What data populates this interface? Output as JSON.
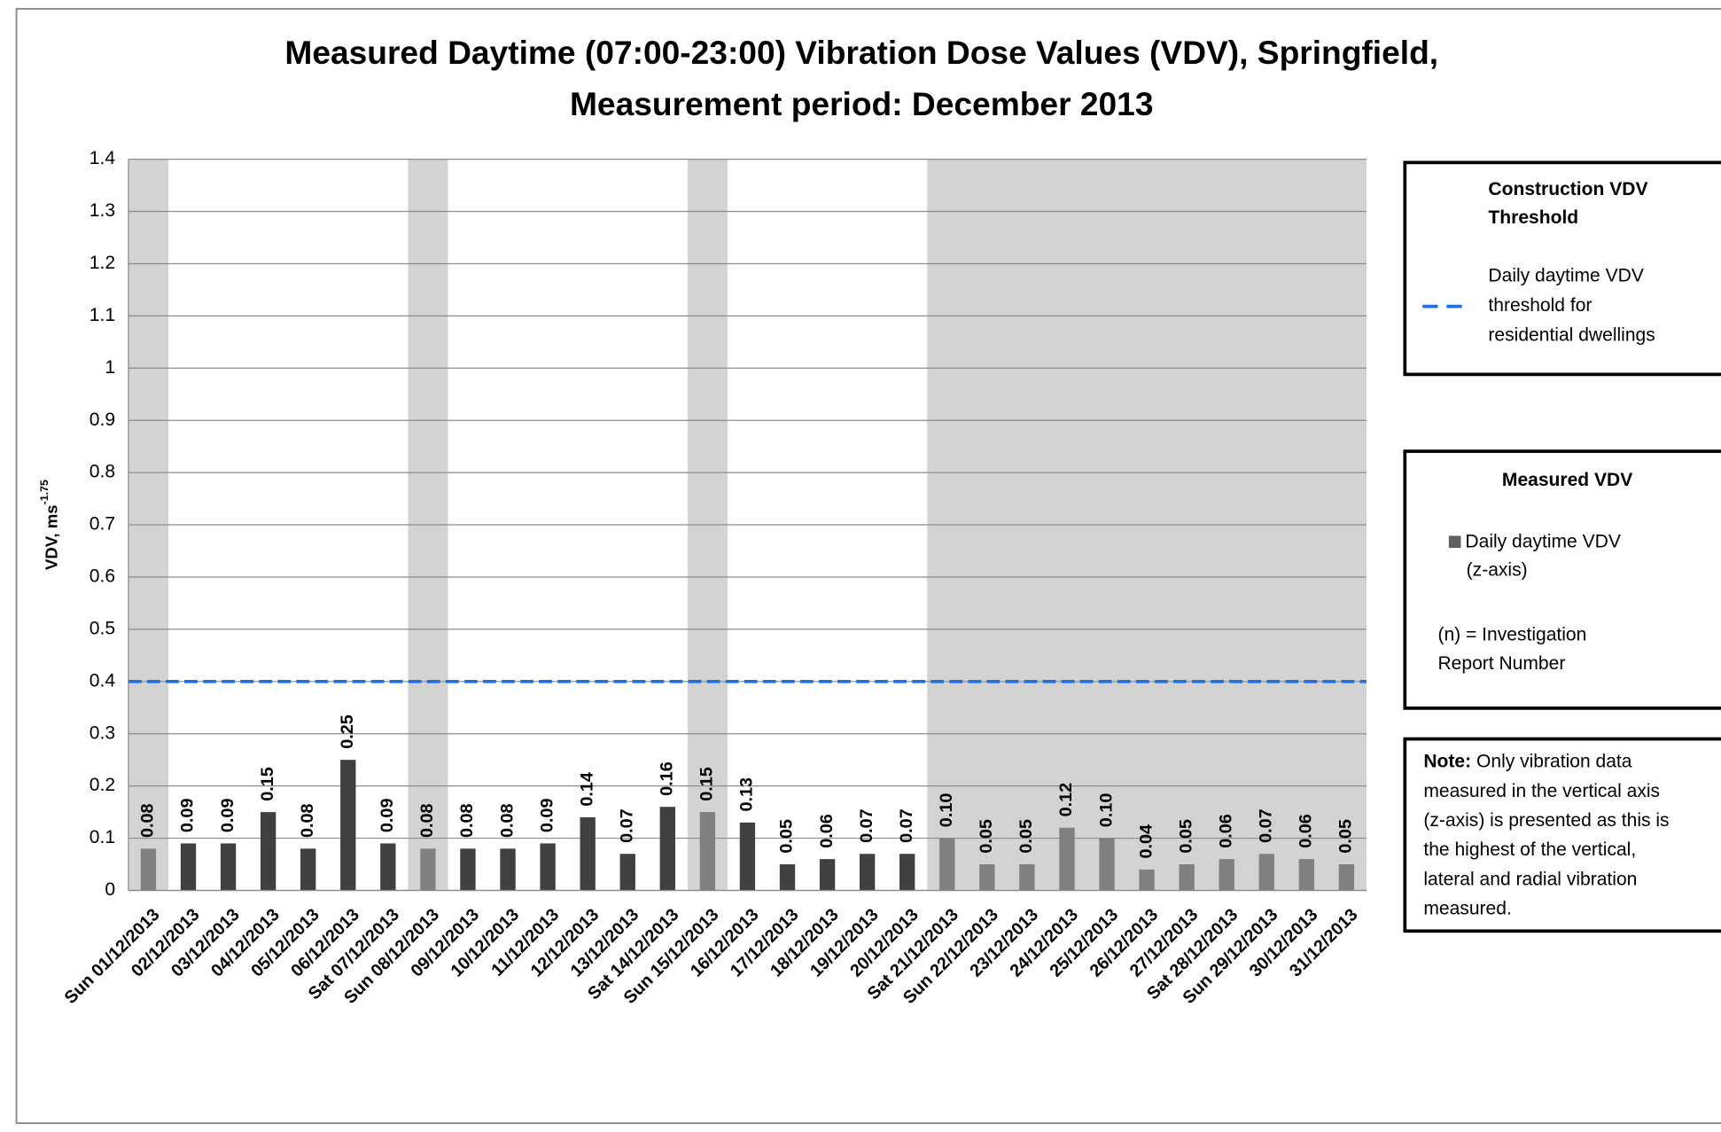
{
  "chart_data": {
    "type": "bar",
    "title": [
      "Measured Daytime (07:00-23:00) Vibration Dose Values (VDV), Springfield,",
      "Measurement period: December 2013"
    ],
    "ylabel": "VDV, ms",
    "ylabel_sup": "-1.75",
    "categories": [
      "Sun 01/12/2013",
      "02/12/2013",
      "03/12/2013",
      "04/12/2013",
      "05/12/2013",
      "06/12/2013",
      "Sat 07/12/2013",
      "Sun 08/12/2013",
      "09/12/2013",
      "10/12/2013",
      "11/12/2013",
      "12/12/2013",
      "13/12/2013",
      "Sat 14/12/2013",
      "Sun 15/12/2013",
      "16/12/2013",
      "17/12/2013",
      "18/12/2013",
      "19/12/2013",
      "20/12/2013",
      "Sat 21/12/2013",
      "Sun 22/12/2013",
      "23/12/2013",
      "24/12/2013",
      "25/12/2013",
      "26/12/2013",
      "27/12/2013",
      "Sat 28/12/2013",
      "Sun 29/12/2013",
      "30/12/2013",
      "31/12/2013"
    ],
    "values": [
      0.08,
      0.09,
      0.09,
      0.15,
      0.08,
      0.25,
      0.09,
      0.08,
      0.08,
      0.08,
      0.09,
      0.14,
      0.07,
      0.16,
      0.15,
      0.13,
      0.05,
      0.06,
      0.07,
      0.07,
      0.1,
      0.05,
      0.05,
      0.12,
      0.1,
      0.04,
      0.05,
      0.06,
      0.07,
      0.06,
      0.05
    ],
    "value_labels": [
      "0.08",
      "0.09",
      "0.09",
      "0.15",
      "0.08",
      "0.25",
      "0.09",
      "0.08",
      "0.08",
      "0.08",
      "0.09",
      "0.14",
      "0.07",
      "0.16",
      "0.15",
      "0.13",
      "0.05",
      "0.06",
      "0.07",
      "0.07",
      "0.10",
      "0.05",
      "0.05",
      "0.12",
      "0.10",
      "0.04",
      "0.05",
      "0.06",
      "0.07",
      "0.06",
      "0.05"
    ],
    "colors": [
      "#808080",
      "#404040",
      "#404040",
      "#404040",
      "#404040",
      "#404040",
      "#404040",
      "#808080",
      "#404040",
      "#404040",
      "#404040",
      "#404040",
      "#404040",
      "#404040",
      "#808080",
      "#404040",
      "#404040",
      "#404040",
      "#404040",
      "#404040",
      "#808080",
      "#808080",
      "#808080",
      "#808080",
      "#808080",
      "#808080",
      "#808080",
      "#808080",
      "#808080",
      "#808080",
      "#808080"
    ],
    "label_colors": [
      "#7575c8",
      "#1a1ab0",
      "#1a1ab0",
      "#1a1ab0",
      "#1a1ab0",
      "#1a1ab0",
      "#1a1ab0",
      "#7575c8",
      "#1a1ab0",
      "#1a1ab0",
      "#1a1ab0",
      "#1a1ab0",
      "#1a1ab0",
      "#1a1ab0",
      "#7575c8",
      "#1a1ab0",
      "#1a1ab0",
      "#1a1ab0",
      "#1a1ab0",
      "#1a1ab0",
      "#7575c8",
      "#7575c8",
      "#7575c8",
      "#7575c8",
      "#7575c8",
      "#7575c8",
      "#7575c8",
      "#7575c8",
      "#7575c8",
      "#7575c8",
      "#7575c8"
    ],
    "shaded_spans": [
      [
        0,
        0
      ],
      [
        7,
        7
      ],
      [
        14,
        14
      ],
      [
        20,
        30
      ]
    ],
    "shade_color": "#d3d3d3",
    "ylim": [
      0,
      1.4
    ],
    "yticks": [
      0,
      0.1,
      0.2,
      0.3,
      0.4,
      0.5,
      0.6,
      0.7,
      0.8,
      0.9,
      1,
      1.1,
      1.2,
      1.3,
      1.4
    ],
    "grid": true,
    "reference_line": {
      "value": 0.4,
      "color": "#1f6fe8",
      "legend_title": [
        "Construction VDV",
        "Threshold"
      ],
      "legend_label": [
        "Daily daytime VDV",
        "threshold for",
        "residential dwellings"
      ]
    },
    "bar_legend": {
      "title": "Measured VDV",
      "label": [
        "Daily daytime VDV",
        "(z-axis)"
      ],
      "color": "#606060",
      "note": [
        "(n) = Investigation",
        "Report Number"
      ]
    },
    "note": {
      "label": "Note:",
      "lines": [
        " Only vibration data",
        "measured in the vertical axis",
        "(z-axis) is presented as this is",
        "the highest of the vertical,",
        "lateral and radial vibration",
        "measured."
      ]
    }
  }
}
